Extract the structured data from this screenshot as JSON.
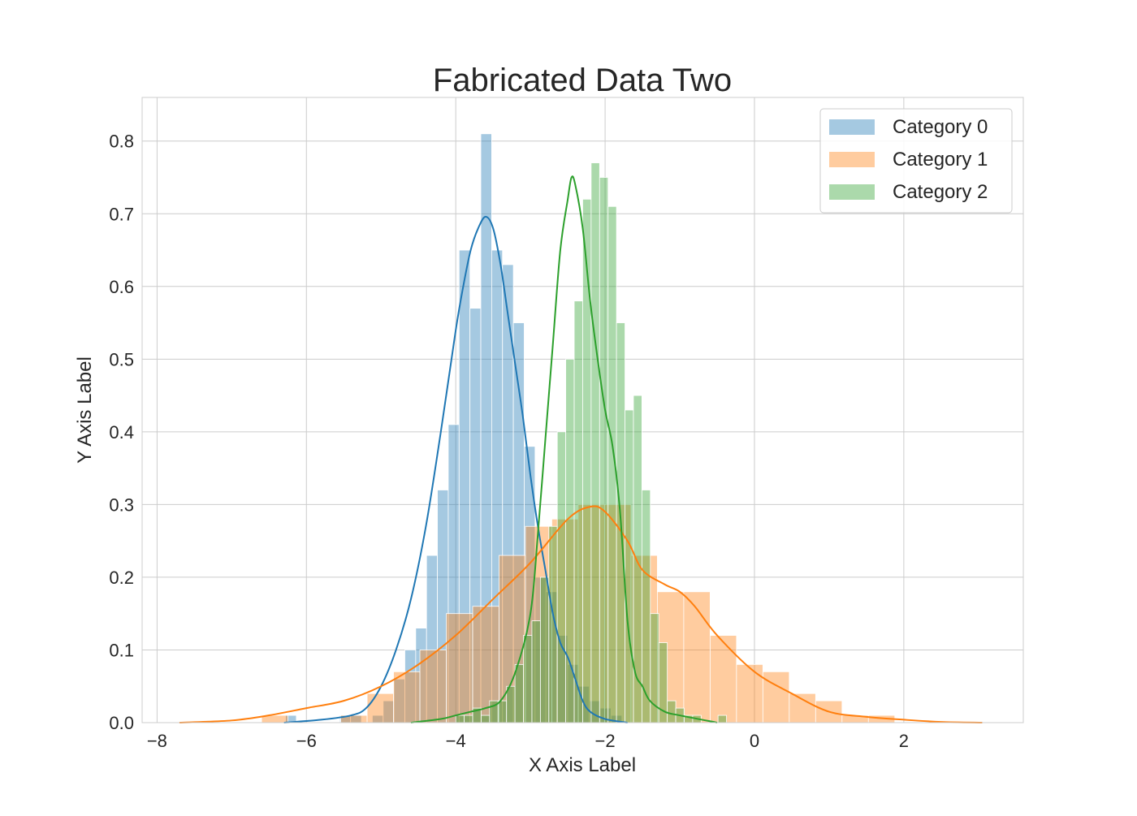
{
  "chart_data": {
    "type": "histogram",
    "title": "Fabricated Data Two",
    "xlabel": "X Axis Label",
    "ylabel": "Y Axis Label",
    "xlim": [
      -8.2,
      3.6
    ],
    "ylim": [
      0,
      0.86
    ],
    "xticks": [
      -8,
      -6,
      -4,
      -2,
      0,
      2
    ],
    "xtick_labels": [
      "−8",
      "−6",
      "−4",
      "−2",
      "0",
      "2"
    ],
    "yticks": [
      0.0,
      0.1,
      0.2,
      0.3,
      0.4,
      0.5,
      0.6,
      0.7,
      0.8
    ],
    "ytick_labels": [
      "0.0",
      "0.1",
      "0.2",
      "0.3",
      "0.4",
      "0.5",
      "0.6",
      "0.7",
      "0.8"
    ],
    "grid": true,
    "legend_position": "top-right",
    "series": [
      {
        "name": "Category 0",
        "color": "#1f77b4",
        "bar_alpha": 0.4,
        "bin_start": -6.28,
        "bin_width": 0.1453,
        "values": [
          0.01,
          0.0,
          0.0,
          0.0,
          0.0,
          0.01,
          0.01,
          0.0,
          0.01,
          0.03,
          0.06,
          0.1,
          0.13,
          0.23,
          0.32,
          0.41,
          0.65,
          0.57,
          0.81,
          0.65,
          0.63,
          0.55,
          0.38,
          0.2,
          0.18,
          0.12,
          0.08,
          0.05,
          0.03,
          0.02,
          0.01
        ],
        "kde": [
          [
            -6.3,
            0.0
          ],
          [
            -5.8,
            0.004
          ],
          [
            -5.4,
            0.01
          ],
          [
            -5.2,
            0.02
          ],
          [
            -5.0,
            0.05
          ],
          [
            -4.8,
            0.1
          ],
          [
            -4.6,
            0.17
          ],
          [
            -4.4,
            0.27
          ],
          [
            -4.2,
            0.4
          ],
          [
            -4.0,
            0.54
          ],
          [
            -3.9,
            0.6
          ],
          [
            -3.8,
            0.65
          ],
          [
            -3.7,
            0.68
          ],
          [
            -3.6,
            0.696
          ],
          [
            -3.5,
            0.68
          ],
          [
            -3.4,
            0.63
          ],
          [
            -3.3,
            0.56
          ],
          [
            -3.2,
            0.49
          ],
          [
            -3.1,
            0.42
          ],
          [
            -3.0,
            0.34
          ],
          [
            -2.9,
            0.27
          ],
          [
            -2.8,
            0.21
          ],
          [
            -2.7,
            0.15
          ],
          [
            -2.6,
            0.11
          ],
          [
            -2.5,
            0.09
          ],
          [
            -2.4,
            0.06
          ],
          [
            -2.3,
            0.03
          ],
          [
            -2.2,
            0.015
          ],
          [
            -2.0,
            0.005
          ],
          [
            -1.7,
            0.0
          ]
        ]
      },
      {
        "name": "Category 1",
        "color": "#ff7f0e",
        "bar_alpha": 0.4,
        "bin_start": -6.6,
        "bin_width": 0.3533,
        "values": [
          0.01,
          0.0,
          0.0,
          0.01,
          0.04,
          0.07,
          0.1,
          0.15,
          0.16,
          0.23,
          0.27,
          0.28,
          0.3,
          0.3,
          0.23,
          0.18,
          0.18,
          0.12,
          0.08,
          0.07,
          0.04,
          0.03,
          0.01,
          0.01,
          0.0
        ],
        "kde": [
          [
            -7.7,
            0.0
          ],
          [
            -7.0,
            0.003
          ],
          [
            -6.5,
            0.01
          ],
          [
            -6.0,
            0.02
          ],
          [
            -5.5,
            0.03
          ],
          [
            -5.0,
            0.05
          ],
          [
            -4.5,
            0.08
          ],
          [
            -4.0,
            0.12
          ],
          [
            -3.5,
            0.17
          ],
          [
            -3.0,
            0.22
          ],
          [
            -2.5,
            0.28
          ],
          [
            -2.2,
            0.297
          ],
          [
            -2.0,
            0.29
          ],
          [
            -1.7,
            0.25
          ],
          [
            -1.5,
            0.21
          ],
          [
            -1.2,
            0.19
          ],
          [
            -1.0,
            0.18
          ],
          [
            -0.8,
            0.16
          ],
          [
            -0.5,
            0.12
          ],
          [
            0.0,
            0.07
          ],
          [
            0.5,
            0.04
          ],
          [
            1.0,
            0.015
          ],
          [
            1.5,
            0.008
          ],
          [
            2.0,
            0.004
          ],
          [
            2.5,
            0.001
          ],
          [
            3.05,
            0.0
          ]
        ]
      },
      {
        "name": "Category 2",
        "color": "#2ca02c",
        "bar_alpha": 0.4,
        "bin_start": -4.0,
        "bin_width": 0.1133,
        "values": [
          0.01,
          0.01,
          0.02,
          0.01,
          0.03,
          0.03,
          0.05,
          0.08,
          0.12,
          0.14,
          0.2,
          0.27,
          0.4,
          0.5,
          0.58,
          0.72,
          0.77,
          0.75,
          0.71,
          0.55,
          0.43,
          0.45,
          0.32,
          0.15,
          0.11,
          0.03,
          0.02,
          0.01,
          0.01,
          0.0,
          0.0,
          0.01
        ],
        "kde": [
          [
            -4.6,
            0.0
          ],
          [
            -4.2,
            0.005
          ],
          [
            -4.0,
            0.01
          ],
          [
            -3.8,
            0.015
          ],
          [
            -3.6,
            0.02
          ],
          [
            -3.4,
            0.03
          ],
          [
            -3.2,
            0.07
          ],
          [
            -3.0,
            0.15
          ],
          [
            -2.9,
            0.26
          ],
          [
            -2.8,
            0.39
          ],
          [
            -2.7,
            0.52
          ],
          [
            -2.6,
            0.65
          ],
          [
            -2.5,
            0.72
          ],
          [
            -2.45,
            0.75
          ],
          [
            -2.4,
            0.74
          ],
          [
            -2.3,
            0.68
          ],
          [
            -2.2,
            0.58
          ],
          [
            -2.1,
            0.5
          ],
          [
            -2.0,
            0.43
          ],
          [
            -1.9,
            0.38
          ],
          [
            -1.8,
            0.29
          ],
          [
            -1.7,
            0.14
          ],
          [
            -1.6,
            0.07
          ],
          [
            -1.5,
            0.05
          ],
          [
            -1.4,
            0.03
          ],
          [
            -1.2,
            0.015
          ],
          [
            -1.0,
            0.01
          ],
          [
            -0.5,
            0.0
          ]
        ]
      }
    ]
  }
}
